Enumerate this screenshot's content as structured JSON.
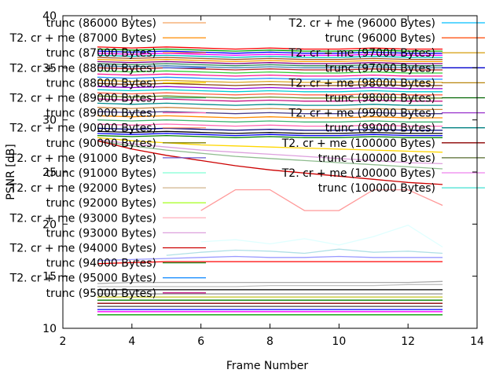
{
  "chart_data": {
    "type": "line",
    "xlabel": "Frame Number",
    "ylabel": "PSNR [dB]",
    "xlim": [
      2,
      14
    ],
    "ylim": [
      10,
      40
    ],
    "xticks": [
      2,
      4,
      6,
      8,
      10,
      12,
      14
    ],
    "yticks": [
      10,
      15,
      20,
      25,
      30,
      35,
      40
    ],
    "grid": false,
    "legend_left": [
      {
        "name": "trunc (86000 Bytes)",
        "color": "#f4a460"
      },
      {
        "name": "T2. cr + me (87000 Bytes)",
        "color": "#ff8c00"
      },
      {
        "name": "trunc (87000 Bytes)",
        "color": "#ff7f50"
      },
      {
        "name": "T2. cr + me (88000 Bytes)",
        "color": "#4169e1"
      },
      {
        "name": "trunc (88000 Bytes)",
        "color": "#ffd700"
      },
      {
        "name": "T2. cr + me (89000 Bytes)",
        "color": "#3cb371"
      },
      {
        "name": "trunc (89000 Bytes)",
        "color": "#ff69b4"
      },
      {
        "name": "T2. cr + me (90000 Bytes)",
        "color": "#ffa07a"
      },
      {
        "name": "trunc (90000 Bytes)",
        "color": "#808000"
      },
      {
        "name": "T2. cr + me (91000 Bytes)",
        "color": "#6a5acd"
      },
      {
        "name": "trunc (91000 Bytes)",
        "color": "#7fffd4"
      },
      {
        "name": "T2. cr + me (92000 Bytes)",
        "color": "#d2b48c"
      },
      {
        "name": "trunc (92000 Bytes)",
        "color": "#adff2f"
      },
      {
        "name": "T2. cr + me (93000 Bytes)",
        "color": "#ffb6c1"
      },
      {
        "name": "trunc (93000 Bytes)",
        "color": "#dda0dd"
      },
      {
        "name": "T2. cr + me (94000 Bytes)",
        "color": "#cc0000"
      },
      {
        "name": "trunc (94000 Bytes)",
        "color": "#228b22"
      },
      {
        "name": "T2. cr + me (95000 Bytes)",
        "color": "#1e90ff"
      },
      {
        "name": "trunc (95000 Bytes)",
        "color": "#c71585"
      }
    ],
    "legend_right": [
      {
        "name": "T2. cr + me (96000 Bytes)",
        "color": "#00bfff"
      },
      {
        "name": "trunc (96000 Bytes)",
        "color": "#ff4500"
      },
      {
        "name": "T2. cr + me (97000 Bytes)",
        "color": "#daa520"
      },
      {
        "name": "trunc (97000 Bytes)",
        "color": "#0000cd"
      },
      {
        "name": "T2. cr + me (98000 Bytes)",
        "color": "#b8860b"
      },
      {
        "name": "trunc (98000 Bytes)",
        "color": "#006400"
      },
      {
        "name": "T2. cr + me (99000 Bytes)",
        "color": "#9932cc"
      },
      {
        "name": "trunc (99000 Bytes)",
        "color": "#008080"
      },
      {
        "name": "T2. cr + me (100000 Bytes)",
        "color": "#8b0000"
      },
      {
        "name": "trunc (100000 Bytes)",
        "color": "#556b2f"
      },
      {
        "name": "T2. cr + me (100000 Bytes)",
        "color": "#ee82ee"
      },
      {
        "name": "trunc (100000 Bytes)",
        "color": "#40e0d0"
      }
    ],
    "x": [
      3,
      4,
      5,
      6,
      7,
      8,
      9,
      10,
      11,
      12,
      13
    ],
    "series": [
      {
        "color": "#ff0000",
        "values": [
          37.0,
          36.9,
          37.0,
          36.9,
          36.8,
          36.9,
          36.8,
          36.8,
          36.9,
          36.8,
          36.8
        ]
      },
      {
        "color": "#00a000",
        "values": [
          36.8,
          36.7,
          36.8,
          36.7,
          36.6,
          36.7,
          36.6,
          36.6,
          36.7,
          36.6,
          36.6
        ]
      },
      {
        "color": "#0000ff",
        "values": [
          36.6,
          36.5,
          36.6,
          36.5,
          36.4,
          36.5,
          36.4,
          36.4,
          36.5,
          36.4,
          36.4
        ]
      },
      {
        "color": "#ff00ff",
        "values": [
          36.4,
          36.3,
          36.4,
          36.3,
          36.2,
          36.3,
          36.2,
          36.2,
          36.3,
          36.2,
          36.2
        ]
      },
      {
        "color": "#00c0c0",
        "values": [
          36.2,
          36.1,
          36.2,
          36.1,
          36.0,
          36.1,
          36.0,
          36.0,
          36.1,
          36.0,
          36.0
        ]
      },
      {
        "color": "#a0522d",
        "values": [
          36.0,
          35.9,
          36.0,
          35.9,
          35.8,
          35.9,
          35.8,
          35.8,
          35.9,
          35.8,
          35.8
        ]
      },
      {
        "color": "#ffa500",
        "values": [
          35.8,
          35.7,
          35.8,
          35.7,
          35.6,
          35.7,
          35.6,
          35.6,
          35.7,
          35.6,
          35.6
        ]
      },
      {
        "color": "#800080",
        "values": [
          35.6,
          35.5,
          35.6,
          35.5,
          35.4,
          35.5,
          35.4,
          35.4,
          35.5,
          35.4,
          35.4
        ]
      },
      {
        "color": "#2e8b57",
        "values": [
          35.4,
          35.3,
          35.4,
          35.3,
          35.2,
          35.3,
          35.2,
          35.2,
          35.3,
          35.2,
          35.2
        ]
      },
      {
        "color": "#4682b4",
        "values": [
          35.2,
          35.1,
          35.2,
          35.1,
          35.0,
          35.1,
          35.0,
          35.0,
          35.1,
          35.0,
          35.0
        ]
      },
      {
        "color": "#b22222",
        "values": [
          35.0,
          34.9,
          35.0,
          34.9,
          34.8,
          34.9,
          34.8,
          34.8,
          34.9,
          34.8,
          34.8
        ]
      },
      {
        "color": "#32cd32",
        "values": [
          34.7,
          34.6,
          34.7,
          34.6,
          34.5,
          34.6,
          34.5,
          34.5,
          34.6,
          34.5,
          34.5
        ]
      },
      {
        "color": "#ff1493",
        "values": [
          34.4,
          34.3,
          34.4,
          34.3,
          34.2,
          34.3,
          34.2,
          34.2,
          34.3,
          34.2,
          34.2
        ]
      },
      {
        "color": "#1e90ff",
        "values": [
          34.1,
          34.0,
          34.1,
          34.0,
          33.9,
          34.0,
          33.9,
          33.9,
          34.0,
          33.9,
          33.9
        ]
      },
      {
        "color": "#daa520",
        "values": [
          33.8,
          33.7,
          33.8,
          33.7,
          33.6,
          33.7,
          33.6,
          33.6,
          33.7,
          33.6,
          33.6
        ]
      },
      {
        "color": "#8b4513",
        "values": [
          33.5,
          33.4,
          33.5,
          33.4,
          33.3,
          33.4,
          33.3,
          33.3,
          33.4,
          33.3,
          33.3
        ]
      },
      {
        "color": "#9400d3",
        "values": [
          33.2,
          33.1,
          33.2,
          33.1,
          33.0,
          33.1,
          33.0,
          33.0,
          33.1,
          33.0,
          33.0
        ]
      },
      {
        "color": "#00ced1",
        "values": [
          32.9,
          32.8,
          32.9,
          32.8,
          32.7,
          32.8,
          32.7,
          32.7,
          32.8,
          32.7,
          32.7
        ]
      },
      {
        "color": "#ff6347",
        "values": [
          32.6,
          32.5,
          32.6,
          32.5,
          32.4,
          32.5,
          32.4,
          32.4,
          32.5,
          32.4,
          32.4
        ]
      },
      {
        "color": "#6b8e23",
        "values": [
          32.3,
          32.2,
          32.3,
          32.2,
          32.1,
          32.2,
          32.1,
          32.1,
          32.2,
          32.1,
          32.1
        ]
      },
      {
        "color": "#c71585",
        "values": [
          32.0,
          31.9,
          32.0,
          31.9,
          31.8,
          31.9,
          31.8,
          31.8,
          31.9,
          31.8,
          31.8
        ]
      },
      {
        "color": "#008b8b",
        "values": [
          31.6,
          31.5,
          31.6,
          31.5,
          31.4,
          31.5,
          31.4,
          31.4,
          31.5,
          31.4,
          31.4
        ]
      },
      {
        "color": "#cd853f",
        "values": [
          31.2,
          31.1,
          31.2,
          31.1,
          31.0,
          31.1,
          31.0,
          31.0,
          31.1,
          31.0,
          31.0
        ]
      },
      {
        "color": "#483d8b",
        "values": [
          30.8,
          30.7,
          30.8,
          30.7,
          30.6,
          30.7,
          30.6,
          30.6,
          30.7,
          30.6,
          30.6
        ]
      },
      {
        "color": "#ff8c00",
        "values": [
          30.4,
          30.3,
          30.4,
          30.3,
          30.2,
          30.3,
          30.2,
          30.2,
          30.3,
          30.2,
          30.2
        ]
      },
      {
        "color": "#3cb371",
        "values": [
          30.0,
          29.9,
          30.0,
          29.9,
          29.8,
          29.9,
          29.8,
          29.8,
          29.9,
          29.8,
          29.8
        ]
      },
      {
        "color": "#ff69b4",
        "values": [
          29.6,
          29.5,
          29.6,
          29.5,
          29.4,
          29.5,
          29.4,
          29.4,
          29.5,
          29.4,
          29.4
        ]
      },
      {
        "color": "#000080",
        "values": [
          29.2,
          29.1,
          29.2,
          29.1,
          29.0,
          29.1,
          29.0,
          29.0,
          29.1,
          29.0,
          29.0
        ]
      },
      {
        "color": "#000000",
        "values": [
          28.9,
          28.8,
          28.9,
          28.8,
          28.7,
          28.8,
          28.7,
          28.7,
          28.8,
          28.7,
          28.7
        ]
      },
      {
        "color": "#0000ff",
        "values": [
          28.7,
          28.6,
          28.7,
          28.6,
          28.5,
          28.6,
          28.5,
          28.5,
          28.6,
          28.5,
          28.5
        ]
      },
      {
        "color": "#008000",
        "values": [
          28.5,
          28.4,
          28.5,
          28.4,
          28.3,
          28.4,
          28.3,
          28.3,
          28.4,
          28.3,
          28.3
        ]
      },
      {
        "color": "#ffd700",
        "values": [
          28.3,
          28.0,
          27.8,
          27.6,
          27.5,
          27.4,
          27.3,
          27.2,
          27.1,
          27.0,
          26.9
        ]
      },
      {
        "color": "#dda0dd",
        "values": [
          28.1,
          27.7,
          27.4,
          27.1,
          26.9,
          26.7,
          26.5,
          26.3,
          26.1,
          25.9,
          25.8
        ]
      },
      {
        "color": "#8fbc8f",
        "values": [
          28.0,
          27.5,
          27.1,
          26.8,
          26.5,
          26.3,
          26.1,
          25.9,
          25.7,
          25.5,
          25.3
        ]
      },
      {
        "color": "#cc0000",
        "values": [
          28.0,
          27.2,
          26.6,
          26.1,
          25.6,
          25.2,
          24.9,
          24.6,
          24.3,
          24.0,
          23.8
        ]
      },
      {
        "color": "#ff9999",
        "values": [
          null,
          null,
          null,
          21.3,
          23.3,
          23.3,
          21.3,
          21.3,
          23.3,
          23.3,
          21.8
        ]
      },
      {
        "color": "#e0ffff",
        "values": [
          null,
          null,
          null,
          18.3,
          18.5,
          18.1,
          18.6,
          18.0,
          18.8,
          19.9,
          17.8
        ]
      },
      {
        "color": "#b0e0e6",
        "values": [
          null,
          null,
          17.0,
          17.3,
          17.5,
          17.4,
          17.2,
          17.6,
          17.3,
          17.4,
          17.2
        ]
      },
      {
        "color": "#9999ff",
        "values": [
          16.5,
          16.6,
          16.7,
          16.8,
          16.9,
          16.8,
          16.8,
          16.9,
          16.8,
          16.8,
          16.8
        ]
      },
      {
        "color": "#ff0000",
        "values": [
          16.2,
          16.3,
          16.4,
          16.4,
          16.4,
          16.4,
          16.4,
          16.4,
          16.4,
          16.4,
          16.4
        ]
      },
      {
        "color": "#aaaaaa",
        "values": [
          14.3,
          14.4,
          14.4,
          14.4,
          14.4,
          14.4,
          14.4,
          14.4,
          14.4,
          14.4,
          14.5
        ]
      },
      {
        "color": "#c0c0c0",
        "values": [
          14.0,
          14.0,
          14.0,
          14.0,
          14.0,
          14.1,
          14.1,
          14.1,
          14.1,
          14.2,
          14.2
        ]
      },
      {
        "color": "#000000",
        "values": [
          13.7,
          13.7,
          13.7,
          13.7,
          13.7,
          13.7,
          13.7,
          13.7,
          13.7,
          13.7,
          13.7
        ]
      },
      {
        "color": "#999999",
        "values": [
          13.3,
          13.3,
          13.3,
          13.3,
          13.3,
          13.3,
          13.3,
          13.3,
          13.3,
          13.3,
          13.3
        ]
      },
      {
        "color": "#c8c832",
        "values": [
          13.0,
          13.0,
          13.0,
          13.0,
          13.0,
          13.0,
          13.0,
          13.0,
          13.0,
          13.0,
          13.0
        ]
      },
      {
        "color": "#008000",
        "values": [
          12.7,
          12.7,
          12.7,
          12.7,
          12.7,
          12.7,
          12.7,
          12.7,
          12.7,
          12.7,
          12.7
        ]
      },
      {
        "color": "#8b0000",
        "values": [
          12.4,
          12.4,
          12.4,
          12.4,
          12.4,
          12.4,
          12.4,
          12.4,
          12.4,
          12.4,
          12.4
        ]
      },
      {
        "color": "#404040",
        "values": [
          12.1,
          12.1,
          12.1,
          12.1,
          12.1,
          12.1,
          12.1,
          12.1,
          12.1,
          12.1,
          12.1
        ]
      },
      {
        "color": "#0000ff",
        "values": [
          11.8,
          11.8,
          11.8,
          11.8,
          11.8,
          11.8,
          11.8,
          11.8,
          11.8,
          11.8,
          11.8
        ]
      },
      {
        "color": "#ff00ff",
        "values": [
          11.6,
          11.6,
          11.6,
          11.6,
          11.6,
          11.6,
          11.6,
          11.6,
          11.6,
          11.6,
          11.6
        ]
      },
      {
        "color": "#00a000",
        "values": [
          11.3,
          11.3,
          11.3,
          11.3,
          11.3,
          11.3,
          11.3,
          11.3,
          11.3,
          11.3,
          11.3
        ]
      }
    ]
  }
}
